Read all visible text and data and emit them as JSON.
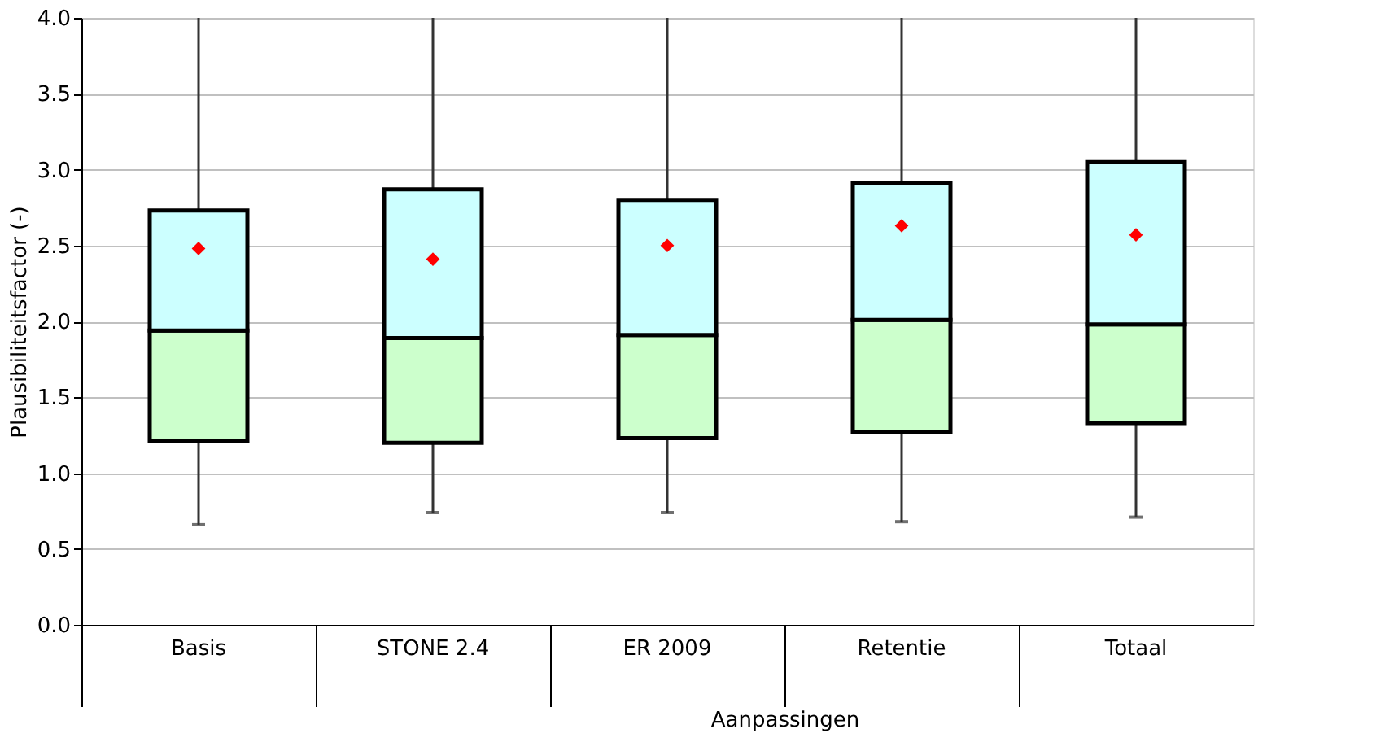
{
  "chart_data": {
    "type": "box",
    "ylabel": "Plausibiliteitsfactor (-)",
    "xlabel": "Aanpassingen",
    "categories": [
      "Basis",
      "STONE 2.4",
      "ER 2009",
      "Retentie",
      "Totaal"
    ],
    "series": [
      {
        "type": "box",
        "color": "#ccffff",
        "colors": [
          "#ccffcc",
          "#ccffcc",
          "#ccffcc",
          "#ccffcc",
          "#ccffcc"
        ],
        "boxes": [
          {
            "low": 0.66,
            "q1": 1.21,
            "median": 1.94,
            "q3": 2.73,
            "high": 4.0
          },
          {
            "low": 0.74,
            "q1": 1.2,
            "median": 1.89,
            "q3": 2.87,
            "high": 4.0
          },
          {
            "low": 0.74,
            "q1": 1.23,
            "median": 1.91,
            "q3": 2.8,
            "high": 4.0
          },
          {
            "low": 0.68,
            "q1": 1.27,
            "median": 2.01,
            "q3": 2.91,
            "high": 4.0
          },
          {
            "low": 0.71,
            "q1": 1.33,
            "median": 1.98,
            "q3": 3.05,
            "high": 4.0
          }
        ]
      },
      {
        "type": "scatter",
        "color": "#ff0000",
        "marker": "diamond",
        "x": [
          "Basis",
          "STONE 2.4",
          "ER 2009",
          "Retentie",
          "Totaal"
        ],
        "values": [
          2.48,
          2.41,
          2.5,
          2.63,
          2.57
        ]
      }
    ],
    "ylim": [
      0,
      4
    ],
    "yticks": [
      {
        "value": 0,
        "label": "0.0"
      },
      0.5,
      {
        "value": 1,
        "label": "1.0"
      },
      1.5,
      {
        "value": 2,
        "label": "2.0"
      },
      2.5,
      {
        "value": 3,
        "label": "3.0"
      },
      3.5,
      {
        "value": 4,
        "label": "4.0"
      }
    ],
    "grid": "y"
  }
}
